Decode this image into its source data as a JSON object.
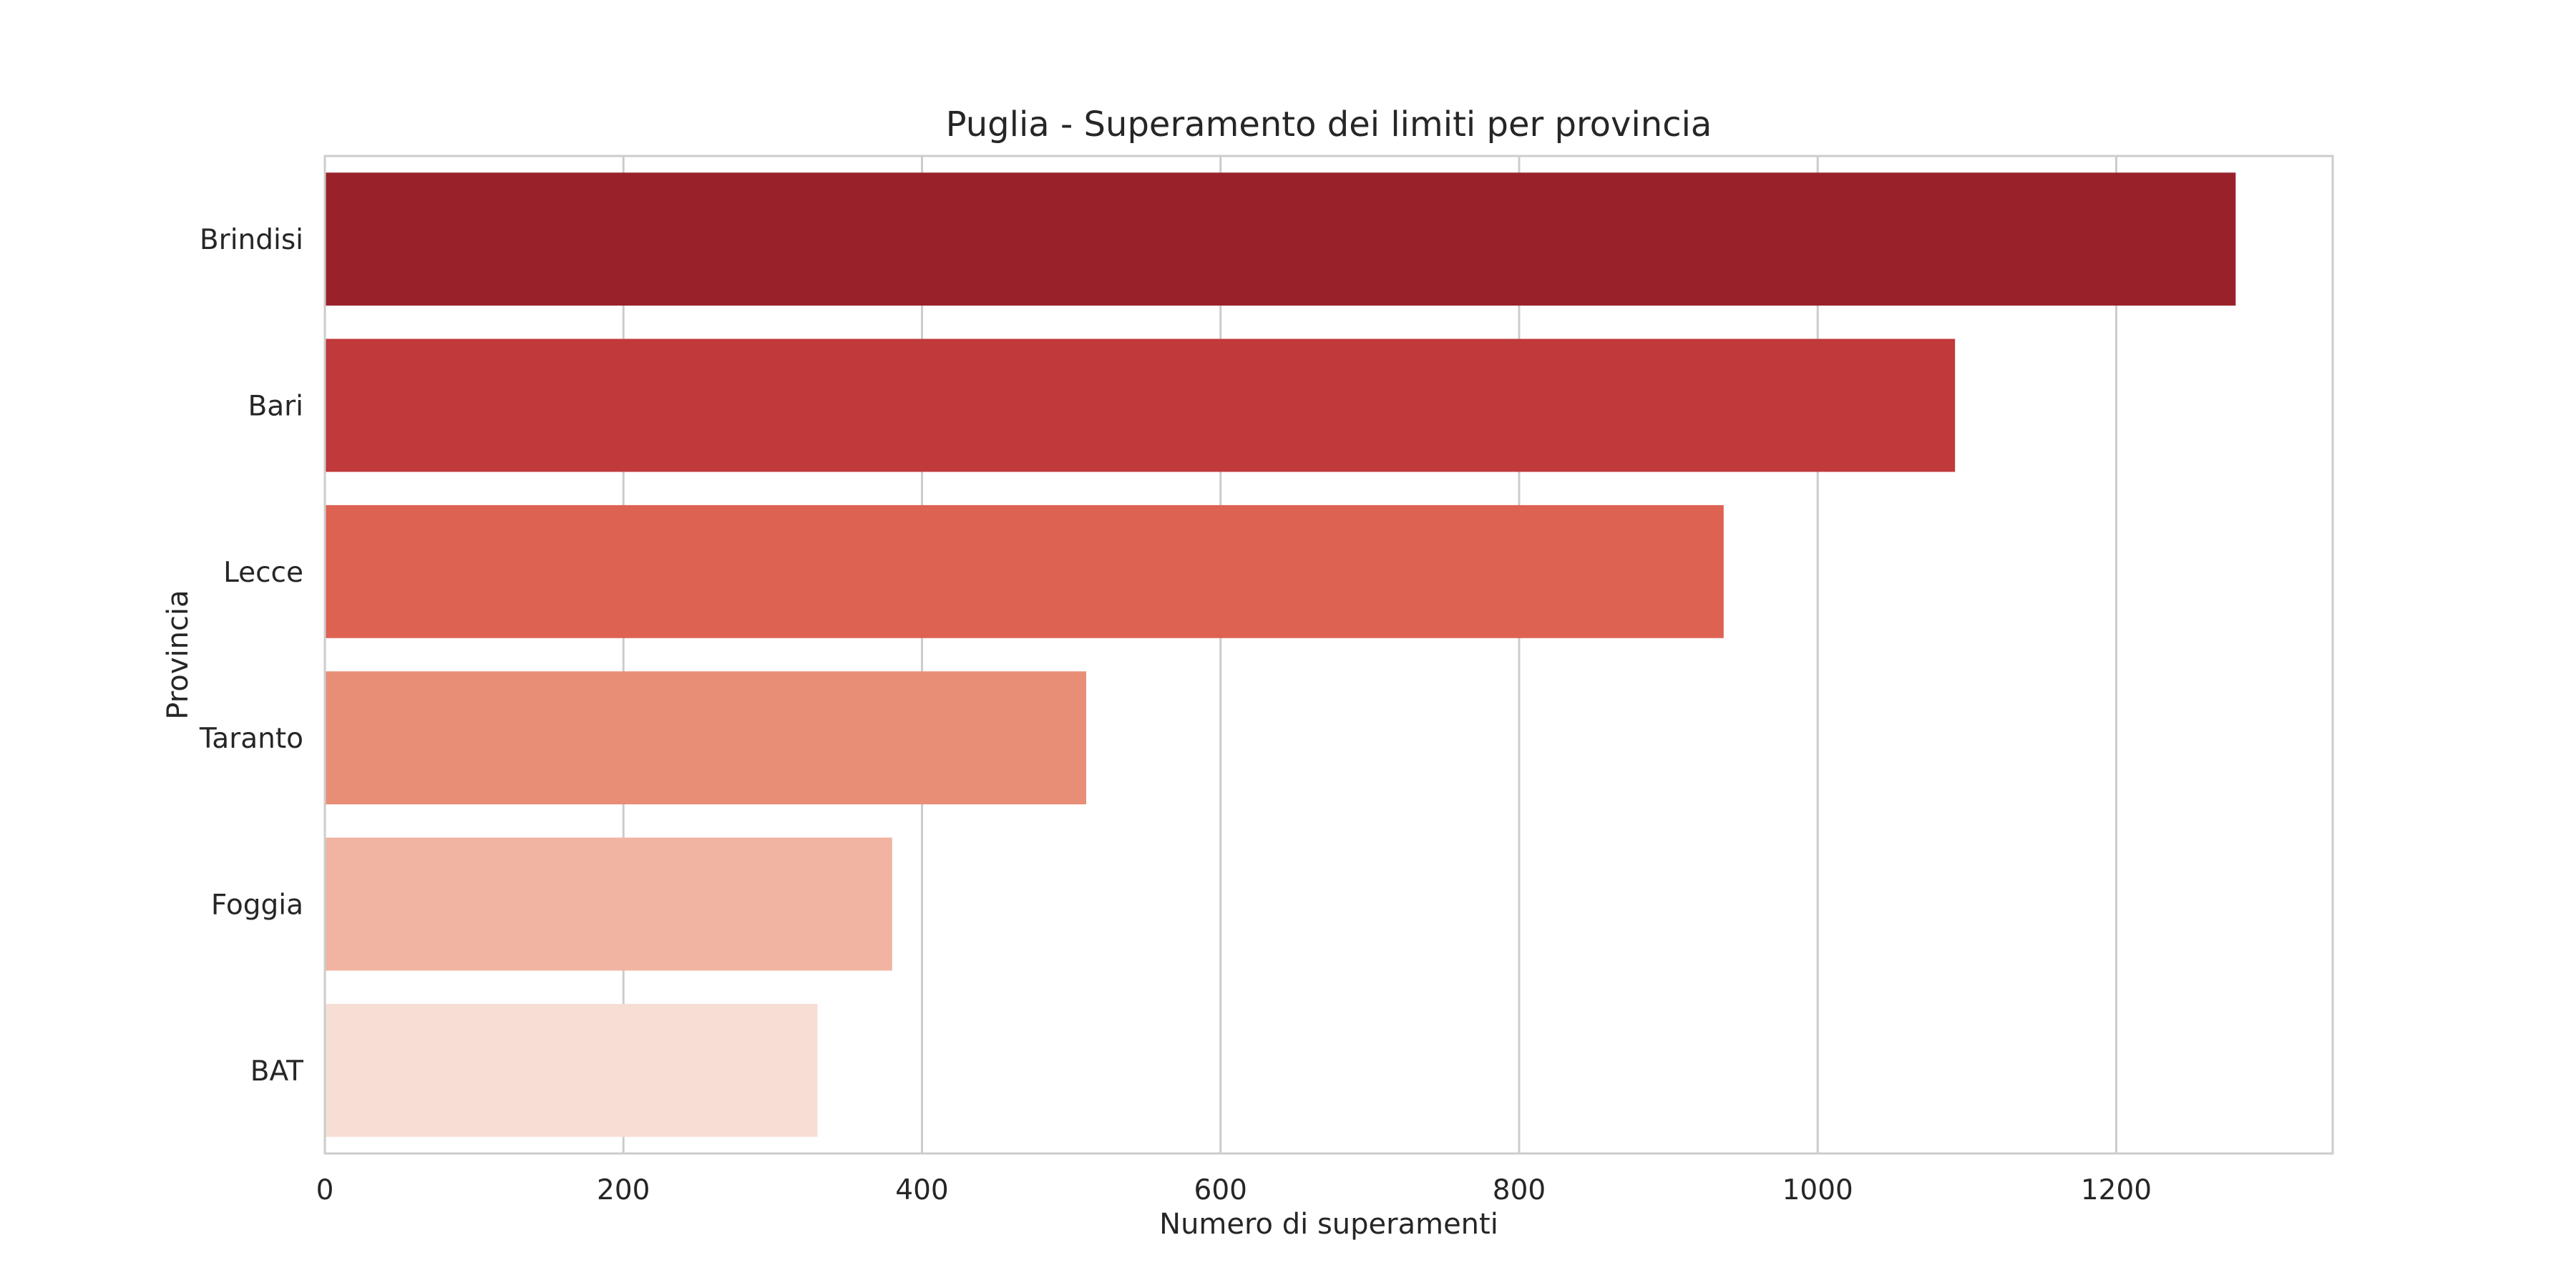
{
  "chart_data": {
    "type": "bar",
    "orientation": "horizontal",
    "title": "Puglia - Superamento dei limiti per provincia",
    "xlabel": "Numero di superamenti",
    "ylabel": "Provincia",
    "categories": [
      "Brindisi",
      "Bari",
      "Lecce",
      "Taranto",
      "Foggia",
      "BAT"
    ],
    "values": [
      1280,
      1092,
      937,
      510,
      380,
      330
    ],
    "colors": [
      "#99222a",
      "#c0393b",
      "#de6252",
      "#e88e77",
      "#f1b4a2",
      "#f7ded4"
    ],
    "xlim": [
      0,
      1345
    ],
    "xticks": [
      0,
      200,
      400,
      600,
      800,
      1000,
      1200
    ],
    "grid": true
  }
}
